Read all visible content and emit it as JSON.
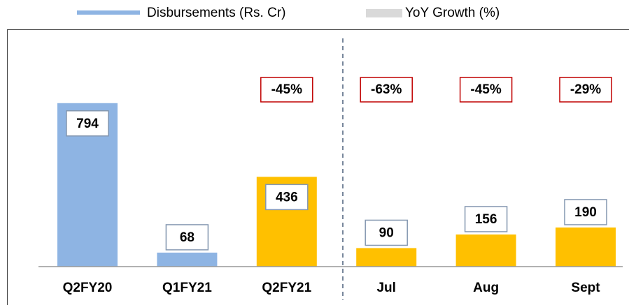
{
  "chart_data": {
    "type": "bar",
    "categories": [
      "Q2FY20",
      "Q1FY21",
      "Q2FY21",
      "Jul",
      "Aug",
      "Sept"
    ],
    "series": [
      {
        "name": "Disbursements (Rs. Cr)",
        "color": "#8eb4e3",
        "colors": [
          "#8eb4e3",
          "#8eb4e3",
          "#ffc000",
          "#ffc000",
          "#ffc000",
          "#ffc000"
        ],
        "values": [
          794,
          68,
          436,
          90,
          156,
          190
        ]
      },
      {
        "name": "YoY Growth (%)",
        "color": "#d9d9d9",
        "values": [
          null,
          null,
          -45,
          -63,
          -45,
          -29
        ],
        "value_labels": [
          null,
          null,
          "-45%",
          "-63%",
          "-45%",
          "-29%"
        ]
      }
    ]
  }
}
